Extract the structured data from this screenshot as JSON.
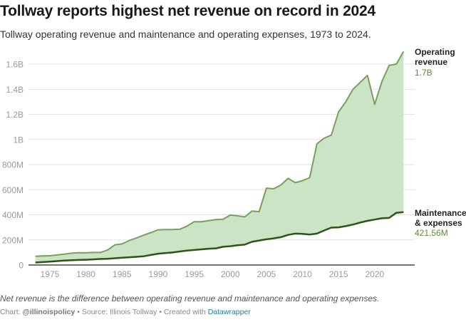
{
  "title": "Tollway reports highest net revenue on record in 2024",
  "subtitle": "Tollway operating revenue and maintenance and operating expenses, 1973 to 2024.",
  "note": "Net revenue is the difference between operating revenue and maintenance and operating expenses.",
  "byline": {
    "chart_label": "Chart:",
    "author": "@illinoispolicy",
    "source": "• Source: Illinois Tollway",
    "created": "• Created with",
    "tool": "Datawrapper"
  },
  "colors": {
    "revenue": "#7a9e5e",
    "expenses": "#2e5418",
    "fill": "#cbe4c6",
    "label_value": "#5b8a3c",
    "grid": "#e2e2e2"
  },
  "chart_data": {
    "type": "area",
    "ylim": [
      0,
      1700000000
    ],
    "y_ticks": [
      {
        "v": 0,
        "label": "0"
      },
      {
        "v": 200000000,
        "label": "200M"
      },
      {
        "v": 400000000,
        "label": "400M"
      },
      {
        "v": 600000000,
        "label": "600M"
      },
      {
        "v": 800000000,
        "label": "800M"
      },
      {
        "v": 1000000000,
        "label": "1B"
      },
      {
        "v": 1200000000,
        "label": "1.2B"
      },
      {
        "v": 1400000000,
        "label": "1.4B"
      },
      {
        "v": 1600000000,
        "label": "1.6B"
      }
    ],
    "x_ticks": [
      "1975",
      "1980",
      "1985",
      "1990",
      "1995",
      "2000",
      "2005",
      "2010",
      "2015",
      "2020"
    ],
    "grid": true,
    "x": [
      1973,
      1974,
      1975,
      1976,
      1977,
      1978,
      1979,
      1980,
      1981,
      1982,
      1983,
      1984,
      1985,
      1986,
      1987,
      1988,
      1989,
      1990,
      1991,
      1992,
      1993,
      1994,
      1995,
      1996,
      1997,
      1998,
      1999,
      2000,
      2001,
      2002,
      2003,
      2004,
      2005,
      2006,
      2007,
      2008,
      2009,
      2010,
      2011,
      2012,
      2013,
      2014,
      2015,
      2016,
      2017,
      2018,
      2019,
      2020,
      2021,
      2022,
      2023,
      2024
    ],
    "series": [
      {
        "name": "Operating revenue",
        "end_label": "1.7B",
        "values_millions": [
          70,
          72,
          74,
          80,
          87,
          94,
          98,
          97,
          100,
          100,
          120,
          160,
          168,
          195,
          215,
          238,
          258,
          280,
          282,
          282,
          285,
          310,
          345,
          345,
          353,
          362,
          365,
          398,
          392,
          383,
          430,
          425,
          612,
          607,
          637,
          690,
          656,
          672,
          695,
          965,
          1010,
          1035,
          1220,
          1300,
          1400,
          1455,
          1510,
          1280,
          1460,
          1590,
          1600,
          1700
        ]
      },
      {
        "name": "Maintenance & expenses",
        "end_label": "421.56M",
        "values_millions": [
          20,
          23,
          27,
          31,
          35,
          38,
          40,
          42,
          45,
          48,
          50,
          54,
          58,
          62,
          65,
          70,
          80,
          90,
          95,
          100,
          108,
          115,
          120,
          125,
          130,
          133,
          145,
          150,
          157,
          162,
          185,
          195,
          205,
          212,
          222,
          240,
          250,
          248,
          243,
          250,
          275,
          298,
          300,
          310,
          322,
          338,
          352,
          362,
          372,
          375,
          416,
          421.56
        ]
      }
    ]
  }
}
